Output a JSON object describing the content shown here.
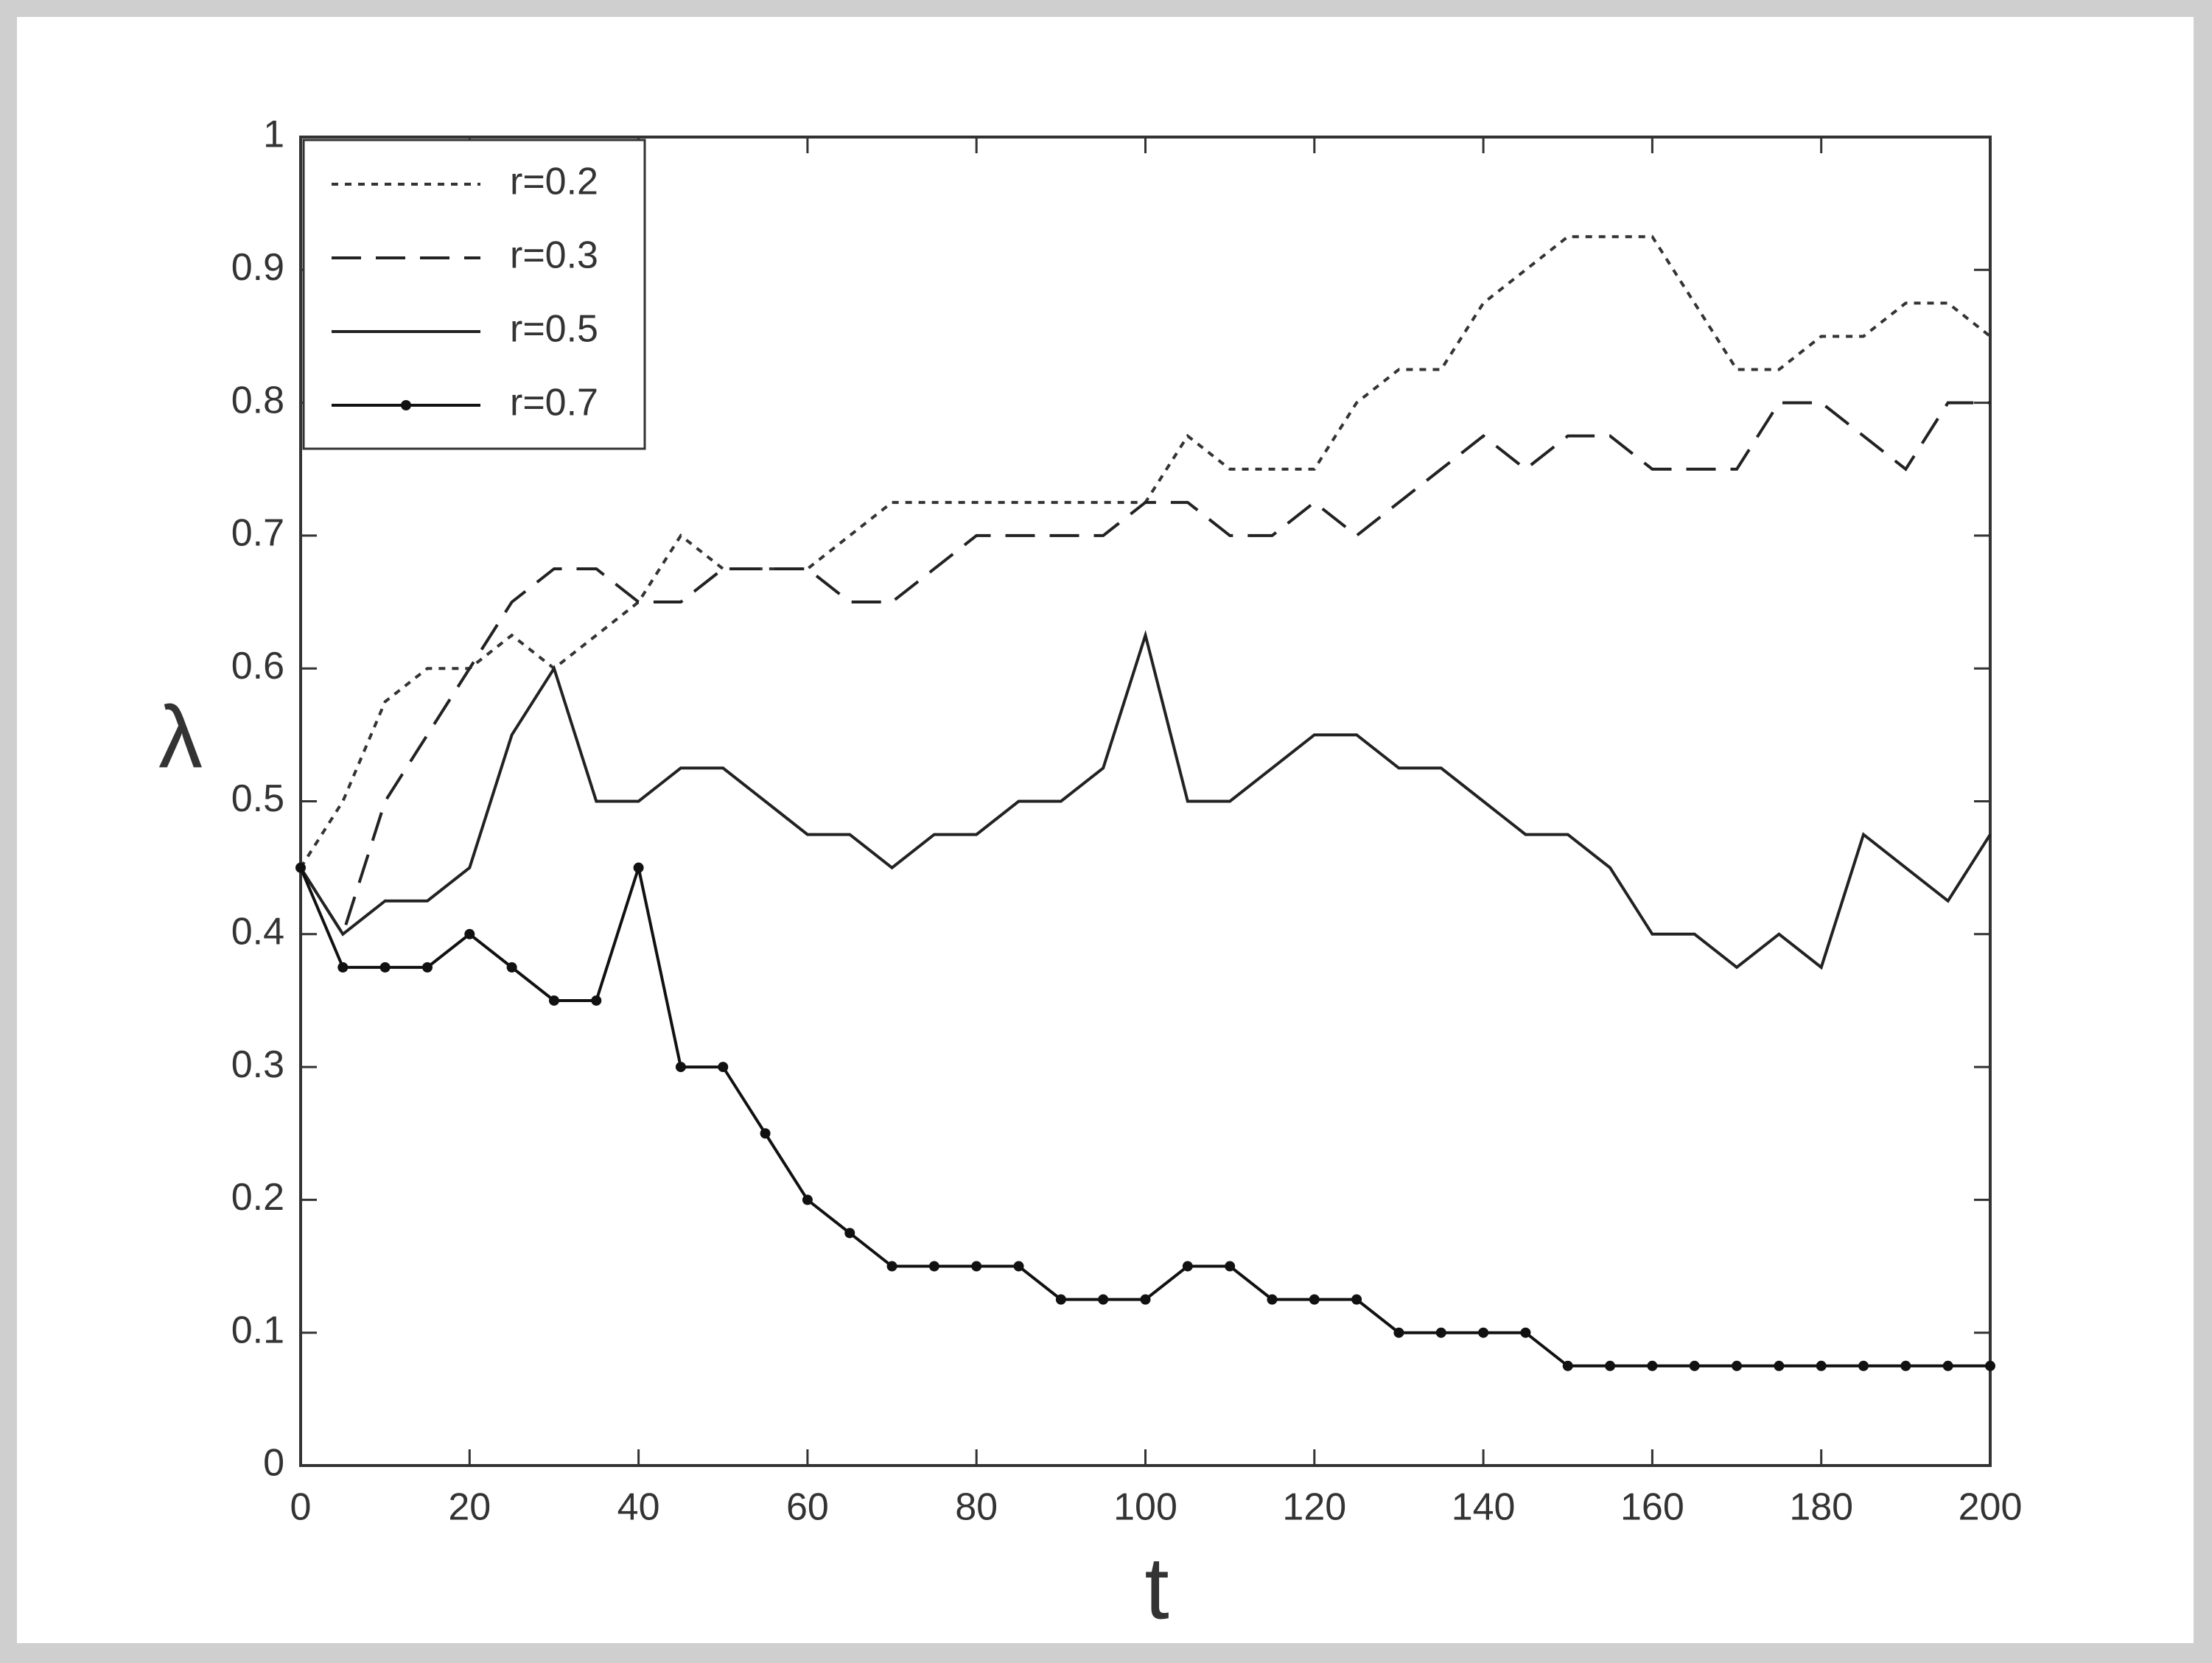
{
  "chart_data": {
    "type": "line",
    "xlabel": "t",
    "ylabel": "λ",
    "x": [
      0,
      5,
      10,
      15,
      20,
      25,
      30,
      35,
      40,
      45,
      50,
      55,
      60,
      65,
      70,
      75,
      80,
      85,
      90,
      95,
      100,
      105,
      110,
      115,
      120,
      125,
      130,
      135,
      140,
      145,
      150,
      155,
      160,
      165,
      170,
      175,
      180,
      185,
      190,
      195,
      200
    ],
    "series": [
      {
        "name": "r=0.2",
        "color": "#333333",
        "linestyle": "dotted",
        "marker": false,
        "values": [
          0.45,
          0.5,
          0.575,
          0.6,
          0.6,
          0.625,
          0.6,
          0.625,
          0.65,
          0.7,
          0.675,
          0.675,
          0.675,
          0.7,
          0.725,
          0.725,
          0.725,
          0.725,
          0.725,
          0.725,
          0.725,
          0.775,
          0.75,
          0.75,
          0.75,
          0.8,
          0.825,
          0.825,
          0.875,
          0.9,
          0.925,
          0.925,
          0.925,
          0.875,
          0.825,
          0.825,
          0.85,
          0.85,
          0.875,
          0.875,
          0.85
        ]
      },
      {
        "name": "r=0.3",
        "color": "#222222",
        "linestyle": "dashed",
        "marker": false,
        "values": [
          0.45,
          0.4,
          0.5,
          0.55,
          0.6,
          0.65,
          0.675,
          0.675,
          0.65,
          0.65,
          0.675,
          0.675,
          0.675,
          0.65,
          0.65,
          0.675,
          0.7,
          0.7,
          0.7,
          0.7,
          0.725,
          0.725,
          0.7,
          0.7,
          0.725,
          0.7,
          0.725,
          0.75,
          0.775,
          0.75,
          0.775,
          0.775,
          0.75,
          0.75,
          0.75,
          0.8,
          0.8,
          0.775,
          0.75,
          0.8,
          0.8
        ]
      },
      {
        "name": "r=0.5",
        "color": "#222222",
        "linestyle": "solid",
        "marker": false,
        "values": [
          0.45,
          0.4,
          0.425,
          0.425,
          0.45,
          0.55,
          0.6,
          0.5,
          0.5,
          0.525,
          0.525,
          0.5,
          0.475,
          0.475,
          0.45,
          0.475,
          0.475,
          0.5,
          0.5,
          0.525,
          0.625,
          0.5,
          0.5,
          0.525,
          0.55,
          0.55,
          0.525,
          0.525,
          0.5,
          0.475,
          0.475,
          0.45,
          0.4,
          0.4,
          0.375,
          0.4,
          0.375,
          0.475,
          0.45,
          0.425,
          0.475
        ]
      },
      {
        "name": "r=0.7",
        "color": "#111111",
        "linestyle": "solid",
        "marker": true,
        "values": [
          0.45,
          0.375,
          0.375,
          0.375,
          0.4,
          0.375,
          0.35,
          0.35,
          0.45,
          0.3,
          0.3,
          0.25,
          0.2,
          0.175,
          0.15,
          0.15,
          0.15,
          0.15,
          0.125,
          0.125,
          0.125,
          0.15,
          0.15,
          0.125,
          0.125,
          0.125,
          0.1,
          0.1,
          0.1,
          0.1,
          0.075,
          0.075,
          0.075,
          0.075,
          0.075,
          0.075,
          0.075,
          0.075,
          0.075,
          0.075,
          0.075
        ]
      }
    ],
    "xlim": [
      0,
      200
    ],
    "ylim": [
      0,
      1
    ],
    "xticks": [
      0,
      20,
      40,
      60,
      80,
      100,
      120,
      140,
      160,
      180,
      200
    ],
    "yticks": [
      0,
      0.1,
      0.2,
      0.3,
      0.4,
      0.5,
      0.6,
      0.7,
      0.8,
      0.9,
      1
    ],
    "legend": "upper left",
    "grid": false
  }
}
